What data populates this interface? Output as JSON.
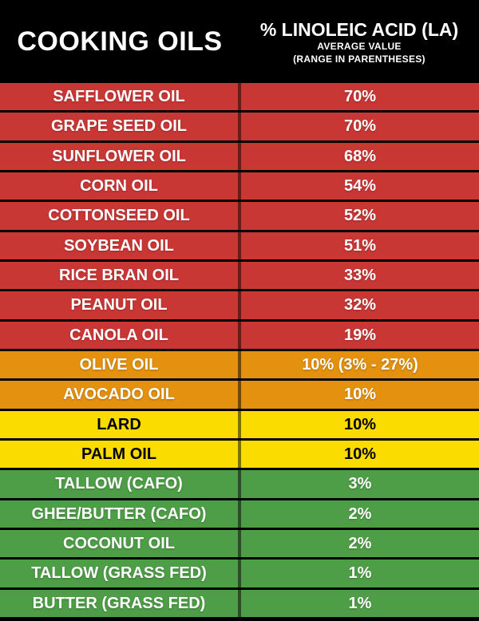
{
  "header": {
    "left_title": "COOKING OILS",
    "right_title": "% LINOLEIC ACID (LA)",
    "right_subtitle_line1": "AVERAGE VALUE",
    "right_subtitle_line2": "(RANGE IN PARENTHESES)"
  },
  "colors": {
    "background": "#000000",
    "red": "#C93735",
    "orange": "#E3910E",
    "yellow": "#FADC00",
    "green": "#4E9E47",
    "text_light": "#FFFFFF",
    "text_dark": "#000000",
    "column_divider": "rgba(0,0,0,0.5)"
  },
  "rows": [
    {
      "name": "SAFFLOWER OIL",
      "value": "70%",
      "color": "red",
      "text": "light"
    },
    {
      "name": "GRAPE SEED OIL",
      "value": "70%",
      "color": "red",
      "text": "light"
    },
    {
      "name": "SUNFLOWER OIL",
      "value": "68%",
      "color": "red",
      "text": "light"
    },
    {
      "name": "CORN OIL",
      "value": "54%",
      "color": "red",
      "text": "light"
    },
    {
      "name": "COTTONSEED OIL",
      "value": "52%",
      "color": "red",
      "text": "light"
    },
    {
      "name": "SOYBEAN OIL",
      "value": "51%",
      "color": "red",
      "text": "light"
    },
    {
      "name": "RICE BRAN OIL",
      "value": "33%",
      "color": "red",
      "text": "light"
    },
    {
      "name": "PEANUT OIL",
      "value": "32%",
      "color": "red",
      "text": "light"
    },
    {
      "name": "CANOLA OIL",
      "value": "19%",
      "color": "red",
      "text": "light"
    },
    {
      "name": "OLIVE OIL",
      "value": "10% (3% - 27%)",
      "color": "orange",
      "text": "light"
    },
    {
      "name": "AVOCADO OIL",
      "value": "10%",
      "color": "orange",
      "text": "light"
    },
    {
      "name": "LARD",
      "value": "10%",
      "color": "yellow",
      "text": "dark"
    },
    {
      "name": "PALM OIL",
      "value": "10%",
      "color": "yellow",
      "text": "dark"
    },
    {
      "name": "TALLOW (CAFO)",
      "value": "3%",
      "color": "green",
      "text": "light"
    },
    {
      "name": "GHEE/BUTTER (CAFO)",
      "value": "2%",
      "color": "green",
      "text": "light"
    },
    {
      "name": "COCONUT OIL",
      "value": "2%",
      "color": "green",
      "text": "light"
    },
    {
      "name": "TALLOW (GRASS FED)",
      "value": "1%",
      "color": "green",
      "text": "light"
    },
    {
      "name": "BUTTER (GRASS FED)",
      "value": "1%",
      "color": "green",
      "text": "light"
    }
  ],
  "chart_data": {
    "type": "table",
    "title": "% LINOLEIC ACID (LA)",
    "subtitle": "AVERAGE VALUE (RANGE IN PARENTHESES)",
    "columns": [
      "COOKING OILS",
      "% LINOLEIC ACID (LA)"
    ],
    "categories": [
      "SAFFLOWER OIL",
      "GRAPE SEED OIL",
      "SUNFLOWER OIL",
      "CORN OIL",
      "COTTONSEED OIL",
      "SOYBEAN OIL",
      "RICE BRAN OIL",
      "PEANUT OIL",
      "CANOLA OIL",
      "OLIVE OIL",
      "AVOCADO OIL",
      "LARD",
      "PALM OIL",
      "TALLOW (CAFO)",
      "GHEE/BUTTER (CAFO)",
      "COCONUT OIL",
      "TALLOW (GRASS FED)",
      "BUTTER (GRASS FED)"
    ],
    "values": [
      70,
      70,
      68,
      54,
      52,
      51,
      33,
      32,
      19,
      10,
      10,
      10,
      10,
      3,
      2,
      2,
      1,
      1
    ],
    "annotations": [
      {
        "category": "OLIVE OIL",
        "range": "3% - 27%"
      }
    ],
    "color_coding": {
      "red": [
        "SAFFLOWER OIL",
        "GRAPE SEED OIL",
        "SUNFLOWER OIL",
        "CORN OIL",
        "COTTONSEED OIL",
        "SOYBEAN OIL",
        "RICE BRAN OIL",
        "PEANUT OIL",
        "CANOLA OIL"
      ],
      "orange": [
        "OLIVE OIL",
        "AVOCADO OIL"
      ],
      "yellow": [
        "LARD",
        "PALM OIL"
      ],
      "green": [
        "TALLOW (CAFO)",
        "GHEE/BUTTER (CAFO)",
        "COCONUT OIL",
        "TALLOW (GRASS FED)",
        "BUTTER (GRASS FED)"
      ]
    }
  }
}
